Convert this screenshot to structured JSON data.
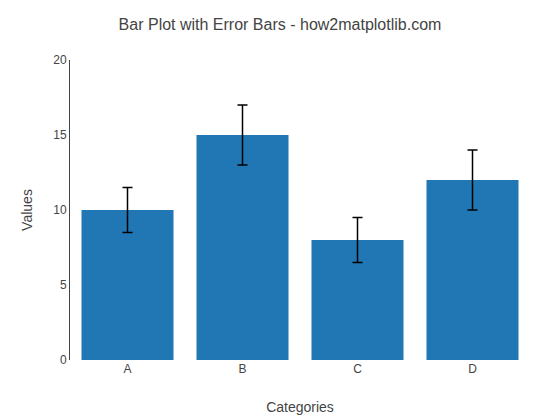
{
  "chart_data": {
    "type": "bar",
    "title": "Bar Plot with Error Bars - how2matplotlib.com",
    "x_label": "Categories",
    "y_label": "Values",
    "categories": [
      "A",
      "B",
      "C",
      "D"
    ],
    "values": [
      10,
      15,
      8,
      12
    ],
    "errors": [
      1.5,
      2.0,
      1.5,
      2.0
    ],
    "color": "#2077b4",
    "ylim": [
      0,
      20
    ],
    "yticks": [
      0,
      5,
      10,
      15,
      20
    ],
    "grid": false
  }
}
